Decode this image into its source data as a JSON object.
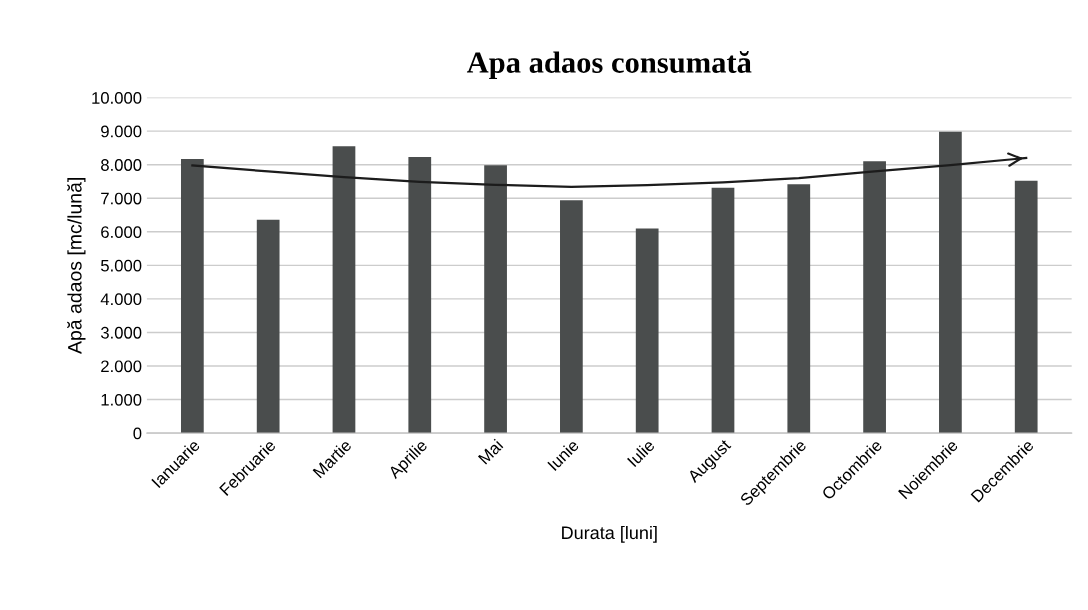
{
  "chart_data": {
    "type": "bar",
    "title": "Apa adaos consumată",
    "xlabel": "Durata [luni]",
    "ylabel": "Apă adaos [mc/lună]",
    "categories": [
      "Ianuarie",
      "Februarie",
      "Martie",
      "Aprilie",
      "Mai",
      "Iunie",
      "Iulie",
      "August",
      "Septembrie",
      "Octombrie",
      "Noiembrie",
      "Decembrie"
    ],
    "series": [
      {
        "color": "#4a4d4d",
        "values": [
          8170,
          6360,
          8550,
          8230,
          7980,
          6940,
          6100,
          7310,
          7420,
          8100,
          8980,
          7520
        ]
      },
      {
        "type": "line",
        "color": "#1c1c1c",
        "marker": "none",
        "line_style": "solid",
        "values": [
          7980,
          7800,
          7630,
          7490,
          7400,
          7340,
          7390,
          7470,
          7600,
          7800,
          7990,
          8200
        ]
      }
    ],
    "ylim": [
      0,
      10000
    ],
    "yticks": [
      {
        "value": 0,
        "label": "0"
      },
      {
        "value": 1000,
        "label": "1.000"
      },
      {
        "value": 2000,
        "label": "2.000"
      },
      {
        "value": 3000,
        "label": "3.000"
      },
      {
        "value": 4000,
        "label": "4.000"
      },
      {
        "value": 5000,
        "label": "5.000"
      },
      {
        "value": 6000,
        "label": "6.000"
      },
      {
        "value": 7000,
        "label": "7.000"
      },
      {
        "value": 8000,
        "label": "8.000"
      },
      {
        "value": 9000,
        "label": "9.000"
      },
      {
        "value": 10000,
        "label": "10.000"
      }
    ],
    "grid": "y",
    "legend": false
  }
}
